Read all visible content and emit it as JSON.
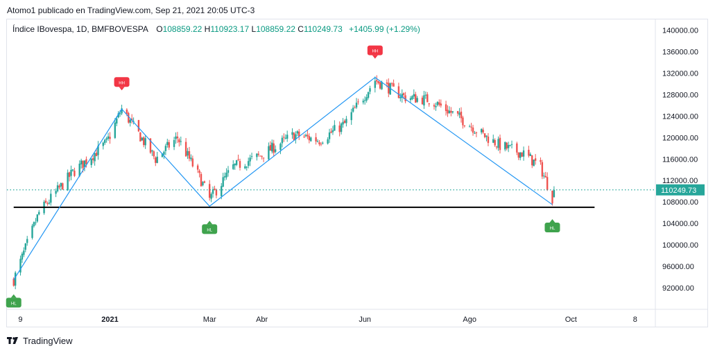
{
  "attribution": "Atomo1 publicado en TradingView.com, Sep 21, 2021 20:05 UTC-3",
  "legend": {
    "symbol": "Índice IBovespa, 1D, BMFBOVESPA",
    "open_label": "O",
    "open": "108859.22",
    "high_label": "H",
    "high": "110923.17",
    "low_label": "L",
    "low": "108859.22",
    "close_label": "C",
    "close": "110249.73",
    "change": "+1405.99 (+1.29%)"
  },
  "footer": {
    "brand": "TradingView",
    "logo_icon": "tradingview-logo-icon"
  },
  "colors": {
    "up": "#26a69a",
    "down": "#ef5350",
    "zigzag": "#2196f3",
    "support": "#000000",
    "last_price_line": "#26a69a",
    "hh_marker": "#f23645",
    "hl_marker": "#3fa34d"
  },
  "chart_data": {
    "type": "candlestick",
    "title": "",
    "y_axis": {
      "side": "right",
      "ylim": [
        88000,
        142000
      ],
      "ticks": [
        "140000.00",
        "136000.00",
        "132000.00",
        "128000.00",
        "124000.00",
        "120000.00",
        "116000.00",
        "112000.00",
        "108000.00",
        "104000.00",
        "100000.00",
        "96000.00",
        "92000.00"
      ],
      "tick_values": [
        140000,
        136000,
        132000,
        128000,
        124000,
        120000,
        116000,
        112000,
        108000,
        104000,
        100000,
        96000,
        92000
      ]
    },
    "x_axis": {
      "ticks": [
        {
          "label": "9",
          "date": "2020-11-09"
        },
        {
          "label": "2021",
          "date": "2021-01-01"
        },
        {
          "label": "Mar",
          "date": "2021-03-01"
        },
        {
          "label": "Abr",
          "date": "2021-04-01"
        },
        {
          "label": "Jun",
          "date": "2021-06-01"
        },
        {
          "label": "Ago",
          "date": "2021-08-02"
        },
        {
          "label": "Oct",
          "date": "2021-10-01"
        },
        {
          "label": "8",
          "date": "2021-11-08"
        }
      ]
    },
    "last_price": {
      "value": 110249.73,
      "label": "110249.73"
    },
    "grid": false,
    "zigzag": [
      {
        "date": "2020-11-05",
        "price": 93500
      },
      {
        "date": "2021-01-08",
        "price": 125300
      },
      {
        "date": "2021-03-01",
        "price": 107200
      },
      {
        "date": "2021-06-07",
        "price": 131200
      },
      {
        "date": "2021-09-20",
        "price": 107500
      }
    ],
    "support_line": {
      "price": 107000,
      "from": "2020-11-05",
      "to": "2021-10-15"
    },
    "markers": [
      {
        "type": "HH",
        "date": "2021-01-08",
        "price": 125300,
        "position": "above",
        "label": "HH"
      },
      {
        "type": "HL",
        "date": "2021-03-01",
        "price": 107200,
        "position": "below",
        "label": "HL"
      },
      {
        "type": "HH",
        "date": "2021-06-07",
        "price": 131200,
        "position": "above",
        "label": "HH"
      },
      {
        "type": "HL",
        "date": "2021-09-20",
        "price": 107500,
        "position": "below",
        "label": "HL"
      },
      {
        "type": "HL",
        "date": "2020-11-05",
        "price": 93500,
        "position": "below",
        "label": "HL"
      }
    ],
    "anchors": [
      {
        "date": "2020-11-05",
        "close": 93500
      },
      {
        "date": "2020-11-20",
        "close": 106000
      },
      {
        "date": "2020-12-10",
        "close": 113500
      },
      {
        "date": "2020-12-30",
        "close": 119000
      },
      {
        "date": "2021-01-08",
        "close": 125300
      },
      {
        "date": "2021-01-28",
        "close": 116000
      },
      {
        "date": "2021-02-10",
        "close": 120000
      },
      {
        "date": "2021-02-24",
        "close": 112000
      },
      {
        "date": "2021-03-01",
        "close": 108500
      },
      {
        "date": "2021-03-15",
        "close": 114500
      },
      {
        "date": "2021-03-31",
        "close": 116600
      },
      {
        "date": "2021-04-20",
        "close": 120500
      },
      {
        "date": "2021-05-05",
        "close": 119500
      },
      {
        "date": "2021-05-20",
        "close": 122500
      },
      {
        "date": "2021-06-07",
        "close": 130700
      },
      {
        "date": "2021-06-25",
        "close": 127500
      },
      {
        "date": "2021-07-10",
        "close": 127000
      },
      {
        "date": "2021-07-28",
        "close": 123500
      },
      {
        "date": "2021-08-10",
        "close": 120500
      },
      {
        "date": "2021-08-20",
        "close": 118500
      },
      {
        "date": "2021-09-03",
        "close": 117000
      },
      {
        "date": "2021-09-13",
        "close": 114500
      },
      {
        "date": "2021-09-20",
        "close": 108800
      },
      {
        "date": "2021-09-21",
        "close": 110249.73
      }
    ]
  }
}
